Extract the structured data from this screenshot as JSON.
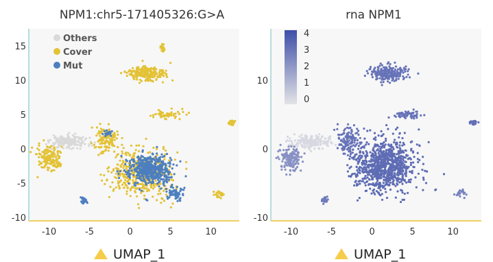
{
  "colors": {
    "others": "#d9d9d9",
    "cover": "#e3c236",
    "mut": "#4d7fbf",
    "expr_low": "#e3e3e6",
    "expr_high": "#3d4ea8",
    "axis_x": "#f0d060",
    "axis_y": "#9fd3d3",
    "arrow": "#f5cd4a"
  },
  "chart_data": [
    {
      "type": "scatter",
      "title": "NPM1:chr5-171405326:G>A",
      "xlabel": "UMAP_1",
      "ylabel": "",
      "xlim": [
        -12.5,
        13.5
      ],
      "ylim": [
        -10.5,
        17.5
      ],
      "xticks": [
        -10,
        -5,
        0,
        5,
        10
      ],
      "yticks": [
        15,
        10,
        5,
        0,
        -5,
        -10
      ],
      "legend": {
        "position": "top-left",
        "entries": [
          {
            "name": "Others",
            "color": "#d9d9d9"
          },
          {
            "name": "Cover",
            "color": "#e3c236"
          },
          {
            "name": "Mut",
            "color": "#4d7fbf"
          }
        ]
      },
      "clusters": [
        {
          "category": "Others",
          "cx": -7.5,
          "cy": 1.0,
          "sx": 2.2,
          "sy": 0.9,
          "n": 180
        },
        {
          "category": "Cover",
          "cx": -10.0,
          "cy": -1.5,
          "sx": 1.3,
          "sy": 1.6,
          "n": 160
        },
        {
          "category": "Cover",
          "cx": 2.0,
          "cy": 11.0,
          "sx": 2.2,
          "sy": 1.0,
          "n": 220
        },
        {
          "category": "Cover",
          "cx": 4.0,
          "cy": 14.8,
          "sx": 0.3,
          "sy": 0.6,
          "n": 30
        },
        {
          "category": "Cover",
          "cx": 4.5,
          "cy": 5.0,
          "sx": 1.6,
          "sy": 0.5,
          "n": 60
        },
        {
          "category": "Cover",
          "cx": 12.5,
          "cy": 3.8,
          "sx": 0.4,
          "sy": 0.3,
          "n": 25
        },
        {
          "category": "Cover",
          "cx": 1.5,
          "cy": -3.5,
          "sx": 3.2,
          "sy": 3.2,
          "n": 460
        },
        {
          "category": "Cover",
          "cx": -3.0,
          "cy": 1.5,
          "sx": 1.3,
          "sy": 1.8,
          "n": 120
        },
        {
          "category": "Cover",
          "cx": 11.0,
          "cy": -6.5,
          "sx": 0.5,
          "sy": 0.6,
          "n": 20
        },
        {
          "category": "Mut",
          "cx": 2.5,
          "cy": -3.0,
          "sx": 2.4,
          "sy": 2.0,
          "n": 520
        },
        {
          "category": "Mut",
          "cx": 5.5,
          "cy": -6.5,
          "sx": 0.9,
          "sy": 0.8,
          "n": 60
        },
        {
          "category": "Mut",
          "cx": -5.8,
          "cy": -7.5,
          "sx": 0.4,
          "sy": 0.4,
          "n": 25
        },
        {
          "category": "Mut",
          "cx": -2.8,
          "cy": 2.3,
          "sx": 0.5,
          "sy": 0.4,
          "n": 20
        }
      ]
    },
    {
      "type": "scatter",
      "title": "rna NPM1",
      "xlabel": "UMAP_1",
      "ylabel": "",
      "xlim": [
        -12.5,
        13.5
      ],
      "ylim": [
        -10.5,
        17.5
      ],
      "xticks": [
        -10,
        -5,
        0,
        5,
        10
      ],
      "yticks": [
        10,
        0,
        -10
      ],
      "colorbar": {
        "position": "top-left",
        "ticks": [
          4,
          3,
          2,
          1,
          0
        ],
        "min": 0,
        "max": 4
      },
      "clusters": [
        {
          "expr": 0.3,
          "cx": -7.5,
          "cy": 1.0,
          "sx": 2.2,
          "sy": 0.9,
          "n": 170
        },
        {
          "expr": 2.2,
          "cx": -10.0,
          "cy": -1.5,
          "sx": 1.3,
          "sy": 1.6,
          "n": 150
        },
        {
          "expr": 3.0,
          "cx": 2.0,
          "cy": 11.0,
          "sx": 2.2,
          "sy": 1.0,
          "n": 220
        },
        {
          "expr": 3.0,
          "cx": 4.5,
          "cy": 5.0,
          "sx": 1.6,
          "sy": 0.5,
          "n": 60
        },
        {
          "expr": 3.1,
          "cx": 12.5,
          "cy": 3.8,
          "sx": 0.4,
          "sy": 0.3,
          "n": 25
        },
        {
          "expr": 3.2,
          "cx": 1.5,
          "cy": -2.5,
          "sx": 3.4,
          "sy": 3.4,
          "n": 900
        },
        {
          "expr": 3.0,
          "cx": -3.0,
          "cy": 1.5,
          "sx": 1.3,
          "sy": 1.8,
          "n": 120
        },
        {
          "expr": 2.8,
          "cx": -5.8,
          "cy": -7.5,
          "sx": 0.4,
          "sy": 0.4,
          "n": 25
        },
        {
          "expr": 2.6,
          "cx": 11.0,
          "cy": -6.5,
          "sx": 0.5,
          "sy": 0.6,
          "n": 20
        }
      ]
    }
  ]
}
